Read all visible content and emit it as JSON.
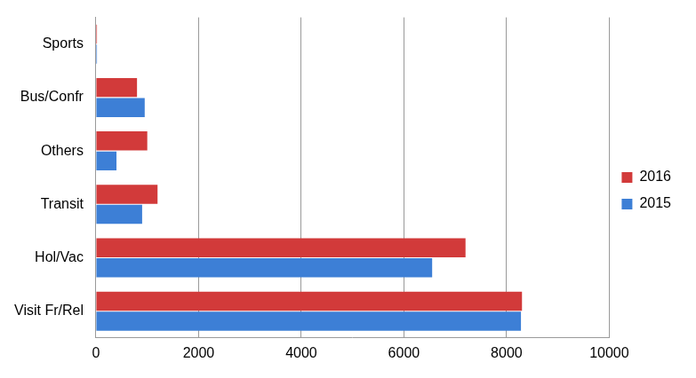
{
  "chart_data": {
    "type": "bar",
    "orientation": "horizontal",
    "categories": [
      "Sports",
      "Bus/Confr",
      "Others",
      "Transit",
      "Hol/Vac",
      "Visit Fr/Rel"
    ],
    "series": [
      {
        "name": "2016",
        "color": "#d23a3a",
        "values": [
          20,
          800,
          1000,
          1200,
          7200,
          8300
        ]
      },
      {
        "name": "2015",
        "color": "#3d7fd6",
        "values": [
          20,
          950,
          400,
          900,
          6550,
          8280
        ]
      }
    ],
    "xlim": [
      0,
      10000
    ],
    "xticks": [
      0,
      2000,
      4000,
      6000,
      8000,
      10000
    ],
    "grid": true,
    "legend": "right"
  }
}
